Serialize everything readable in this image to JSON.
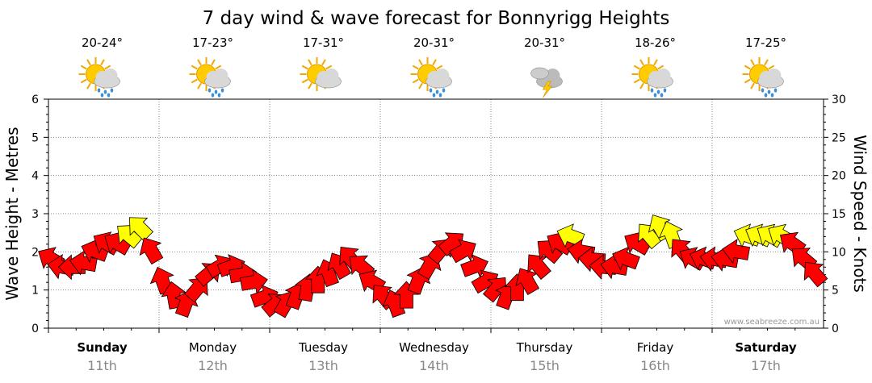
{
  "chart_data": {
    "type": "line",
    "title": "7 day wind & wave forecast for Bonnyrigg Heights",
    "ylabel_left": "Wave Height - Metres",
    "ylabel_right": "Wind Speed - Knots",
    "left_axis": {
      "ylim": [
        0,
        6
      ],
      "ticks": [
        "0",
        "1",
        "2",
        "3",
        "4",
        "5",
        "6"
      ]
    },
    "right_axis": {
      "ylim": [
        0,
        30
      ],
      "ticks": [
        "0",
        "5",
        "10",
        "15",
        "20",
        "25",
        "30"
      ]
    },
    "credit": "www.seabreeze.com.au",
    "days": [
      {
        "name": "Sunday",
        "date": "11th",
        "temp": "20-24°",
        "weather": "partly-cloudy-showers-icon",
        "bold": true
      },
      {
        "name": "Monday",
        "date": "12th",
        "temp": "17-23°",
        "weather": "partly-cloudy-showers-icon",
        "bold": false
      },
      {
        "name": "Tuesday",
        "date": "13th",
        "temp": "17-31°",
        "weather": "partly-cloudy-icon",
        "bold": false
      },
      {
        "name": "Wednesday",
        "date": "14th",
        "temp": "20-31°",
        "weather": "partly-cloudy-showers-icon",
        "bold": false
      },
      {
        "name": "Thursday",
        "date": "15th",
        "temp": "20-31°",
        "weather": "thunderstorm-icon",
        "bold": false
      },
      {
        "name": "Friday",
        "date": "16th",
        "temp": "18-26°",
        "weather": "partly-cloudy-showers-icon",
        "bold": false
      },
      {
        "name": "Saturday",
        "date": "17th",
        "temp": "17-25°",
        "weather": "partly-cloudy-showers-icon",
        "bold": true
      }
    ],
    "wind_series": {
      "name": "Wind speed (knots)",
      "x_day": [
        0.0,
        0.1,
        0.2,
        0.3,
        0.4,
        0.5,
        0.6,
        0.7,
        0.8,
        0.9,
        1.0,
        1.1,
        1.2,
        1.3,
        1.4,
        1.5,
        1.6,
        1.7,
        1.8,
        1.9,
        2.0,
        2.1,
        2.2,
        2.3,
        2.4,
        2.5,
        2.6,
        2.7,
        2.8,
        2.9,
        3.0,
        3.1,
        3.2,
        3.3,
        3.4,
        3.5,
        3.6,
        3.7,
        3.8,
        3.9,
        4.0,
        4.1,
        4.2,
        4.3,
        4.4,
        4.5,
        4.6,
        4.7,
        4.8,
        4.9,
        5.0,
        5.1,
        5.2,
        5.3,
        5.4,
        5.5,
        5.6,
        5.7,
        5.8,
        5.9,
        6.0,
        6.1,
        6.2,
        6.3,
        6.4,
        6.5,
        6.6,
        6.7,
        6.8,
        6.9
      ],
      "values": [
        9,
        8,
        8,
        8.5,
        10,
        11,
        11,
        12,
        13,
        10,
        6,
        4,
        3,
        5,
        7,
        8,
        8,
        7,
        6,
        4,
        3,
        3,
        4,
        5,
        6,
        7,
        8,
        9,
        8,
        6,
        4,
        3,
        4,
        6,
        8,
        10,
        11,
        10,
        8,
        6,
        5,
        4,
        5,
        6,
        8,
        10,
        11,
        12,
        10,
        9,
        8,
        8,
        9,
        11,
        12,
        13,
        12,
        10,
        9,
        9,
        9,
        9,
        10,
        12,
        12,
        12,
        12,
        11,
        9,
        7
      ],
      "direction_deg": [
        120,
        100,
        90,
        100,
        110,
        120,
        120,
        130,
        135,
        150,
        160,
        170,
        200,
        220,
        230,
        240,
        250,
        260,
        260,
        250,
        230,
        210,
        200,
        190,
        180,
        160,
        150,
        140,
        130,
        120,
        140,
        160,
        180,
        200,
        210,
        220,
        230,
        240,
        250,
        240,
        220,
        200,
        180,
        150,
        140,
        130,
        120,
        110,
        100,
        95,
        95,
        100,
        110,
        120,
        140,
        150,
        160,
        140,
        120,
        110,
        100,
        100,
        100,
        110,
        115,
        120,
        120,
        125,
        130,
        140
      ],
      "color_key": {
        "below_12_knots": "#ff0000",
        "12_knots_and_above": "#ffff00"
      }
    },
    "x_categories": [
      "Sunday 11th",
      "Monday 12th",
      "Tuesday 13th",
      "Wednesday 14th",
      "Thursday 15th",
      "Friday 16th",
      "Saturday 17th"
    ]
  }
}
